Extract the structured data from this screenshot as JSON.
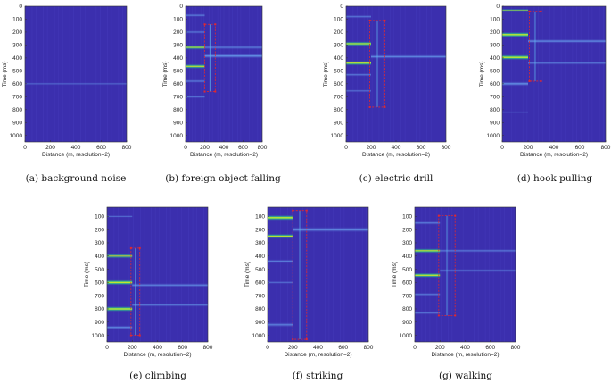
{
  "figure": {
    "panel_bg": "#3b2fae",
    "panels": [
      {
        "id": "a",
        "caption": "(a)  background noise",
        "xlabel": "Distance (m, resolution=2)",
        "ylabel": "Time (ms)",
        "xticks": [
          0,
          200,
          400,
          600,
          800
        ],
        "yticks": [
          0,
          100,
          200,
          300,
          400,
          500,
          600,
          700,
          800,
          900,
          1000
        ],
        "xlim": [
          0,
          800
        ],
        "ylim": [
          0,
          1050
        ],
        "bands": [
          {
            "t": 600,
            "dt": 25,
            "d0": 0,
            "d1": 800,
            "level": 0.15
          }
        ],
        "box": null
      },
      {
        "id": "b",
        "caption": "(b)  foreign object falling",
        "xlabel": "Distance (m, resolution=2)",
        "ylabel": "Time (ms)",
        "xticks": [
          0,
          200,
          400,
          600,
          800
        ],
        "yticks": [
          0,
          100,
          200,
          300,
          400,
          500,
          600,
          700,
          800,
          900,
          1000
        ],
        "xlim": [
          0,
          800
        ],
        "ylim": [
          0,
          1050
        ],
        "bands": [
          {
            "t": 70,
            "dt": 30,
            "d0": 0,
            "d1": 200,
            "level": 0.35
          },
          {
            "t": 200,
            "dt": 30,
            "d0": 0,
            "d1": 200,
            "level": 0.3
          },
          {
            "t": 318,
            "dt": 40,
            "d0": 0,
            "d1": 200,
            "level": 0.75
          },
          {
            "t": 318,
            "dt": 40,
            "d0": 200,
            "d1": 800,
            "level": 0.3
          },
          {
            "t": 385,
            "dt": 40,
            "d0": 200,
            "d1": 800,
            "level": 0.55
          },
          {
            "t": 465,
            "dt": 40,
            "d0": 0,
            "d1": 200,
            "level": 0.85
          },
          {
            "t": 580,
            "dt": 30,
            "d0": 0,
            "d1": 200,
            "level": 0.35
          },
          {
            "t": 700,
            "dt": 30,
            "d0": 0,
            "d1": 200,
            "level": 0.3
          }
        ],
        "box": {
          "d0": 200,
          "d1": 310,
          "t0": 140,
          "t1": 660
        }
      },
      {
        "id": "c",
        "caption": "(c)  electric drill",
        "xlabel": "Distance (m, resolution=2)",
        "ylabel": "Time (ms)",
        "xticks": [
          0,
          200,
          400,
          600,
          800
        ],
        "yticks": [
          0,
          100,
          200,
          300,
          400,
          500,
          600,
          700,
          800,
          900,
          1000
        ],
        "xlim": [
          0,
          800
        ],
        "ylim": [
          0,
          1050
        ],
        "bands": [
          {
            "t": 80,
            "dt": 30,
            "d0": 0,
            "d1": 200,
            "level": 0.3
          },
          {
            "t": 290,
            "dt": 40,
            "d0": 0,
            "d1": 200,
            "level": 0.9
          },
          {
            "t": 390,
            "dt": 35,
            "d0": 200,
            "d1": 800,
            "level": 0.5
          },
          {
            "t": 440,
            "dt": 40,
            "d0": 0,
            "d1": 200,
            "level": 0.9
          },
          {
            "t": 530,
            "dt": 30,
            "d0": 0,
            "d1": 200,
            "level": 0.3
          },
          {
            "t": 655,
            "dt": 25,
            "d0": 0,
            "d1": 200,
            "level": 0.25
          }
        ],
        "box": {
          "d0": 190,
          "d1": 310,
          "t0": 110,
          "t1": 780
        }
      },
      {
        "id": "d",
        "caption": "(d)  hook pulling",
        "xlabel": "Distance (m, resolution=2)",
        "ylabel": "Time (ms)",
        "xticks": [
          0,
          200,
          400,
          600,
          800
        ],
        "yticks": [
          0,
          100,
          200,
          300,
          400,
          500,
          600,
          700,
          800,
          900,
          1000
        ],
        "xlim": [
          0,
          800
        ],
        "ylim": [
          0,
          1050
        ],
        "bands": [
          {
            "t": 30,
            "dt": 20,
            "d0": 0,
            "d1": 200,
            "level": 0.6
          },
          {
            "t": 220,
            "dt": 45,
            "d0": 0,
            "d1": 200,
            "level": 1.0
          },
          {
            "t": 270,
            "dt": 35,
            "d0": 200,
            "d1": 800,
            "level": 0.5
          },
          {
            "t": 395,
            "dt": 45,
            "d0": 0,
            "d1": 200,
            "level": 1.0
          },
          {
            "t": 440,
            "dt": 30,
            "d0": 200,
            "d1": 800,
            "level": 0.3
          },
          {
            "t": 600,
            "dt": 40,
            "d0": 0,
            "d1": 200,
            "level": 0.55
          },
          {
            "t": 820,
            "dt": 20,
            "d0": 0,
            "d1": 200,
            "level": 0.2
          }
        ],
        "box": {
          "d0": 210,
          "d1": 300,
          "t0": 40,
          "t1": 580
        }
      },
      {
        "id": "e",
        "caption": "(e)  climbing",
        "xlabel": "Distance (m, resolution=2)",
        "ylabel": "Time (ms)",
        "xticks": [
          0,
          200,
          400,
          600,
          800
        ],
        "yticks": [
          100,
          200,
          300,
          400,
          500,
          600,
          700,
          800,
          900,
          1000
        ],
        "xlim": [
          0,
          800
        ],
        "ylim": [
          30,
          1050
        ],
        "bands": [
          {
            "t": 100,
            "dt": 20,
            "d0": 0,
            "d1": 200,
            "level": 0.3
          },
          {
            "t": 400,
            "dt": 40,
            "d0": 0,
            "d1": 200,
            "level": 0.6
          },
          {
            "t": 600,
            "dt": 45,
            "d0": 0,
            "d1": 200,
            "level": 1.0
          },
          {
            "t": 620,
            "dt": 35,
            "d0": 200,
            "d1": 800,
            "level": 0.4
          },
          {
            "t": 770,
            "dt": 30,
            "d0": 200,
            "d1": 800,
            "level": 0.35
          },
          {
            "t": 800,
            "dt": 45,
            "d0": 0,
            "d1": 200,
            "level": 1.0
          },
          {
            "t": 940,
            "dt": 35,
            "d0": 0,
            "d1": 200,
            "level": 0.45
          }
        ],
        "box": {
          "d0": 190,
          "d1": 260,
          "t0": 340,
          "t1": 1000
        }
      },
      {
        "id": "f",
        "caption": "(f)  striking",
        "xlabel": "Distance (m, resolution=2)",
        "ylabel": "Time (ms)",
        "xticks": [
          0,
          200,
          400,
          600,
          800
        ],
        "yticks": [
          100,
          200,
          300,
          400,
          500,
          600,
          700,
          800,
          900,
          1000
        ],
        "xlim": [
          0,
          800
        ],
        "ylim": [
          30,
          1050
        ],
        "bands": [
          {
            "t": 110,
            "dt": 45,
            "d0": 0,
            "d1": 200,
            "level": 1.0
          },
          {
            "t": 200,
            "dt": 45,
            "d0": 200,
            "d1": 800,
            "level": 0.5
          },
          {
            "t": 250,
            "dt": 40,
            "d0": 0,
            "d1": 200,
            "level": 0.95
          },
          {
            "t": 440,
            "dt": 35,
            "d0": 0,
            "d1": 200,
            "level": 0.4
          },
          {
            "t": 600,
            "dt": 25,
            "d0": 0,
            "d1": 200,
            "level": 0.25
          },
          {
            "t": 920,
            "dt": 40,
            "d0": 0,
            "d1": 200,
            "level": 0.35
          }
        ],
        "box": {
          "d0": 200,
          "d1": 310,
          "t0": 55,
          "t1": 1030
        }
      },
      {
        "id": "g",
        "caption": "(g)  walking",
        "xlabel": "Distance (m, resolution=2)",
        "ylabel": "Time (ms)",
        "xticks": [
          0,
          200,
          400,
          600,
          800
        ],
        "yticks": [
          100,
          200,
          300,
          400,
          500,
          600,
          700,
          800,
          900,
          1000
        ],
        "xlim": [
          0,
          800
        ],
        "ylim": [
          30,
          1050
        ],
        "bands": [
          {
            "t": 150,
            "dt": 30,
            "d0": 0,
            "d1": 200,
            "level": 0.35
          },
          {
            "t": 360,
            "dt": 40,
            "d0": 0,
            "d1": 200,
            "level": 0.85
          },
          {
            "t": 360,
            "dt": 30,
            "d0": 200,
            "d1": 800,
            "level": 0.3
          },
          {
            "t": 510,
            "dt": 30,
            "d0": 200,
            "d1": 800,
            "level": 0.3
          },
          {
            "t": 545,
            "dt": 40,
            "d0": 0,
            "d1": 200,
            "level": 0.95
          },
          {
            "t": 690,
            "dt": 30,
            "d0": 0,
            "d1": 200,
            "level": 0.3
          },
          {
            "t": 830,
            "dt": 30,
            "d0": 0,
            "d1": 200,
            "level": 0.3
          }
        ],
        "box": {
          "d0": 190,
          "d1": 320,
          "t0": 95,
          "t1": 850
        }
      }
    ]
  }
}
